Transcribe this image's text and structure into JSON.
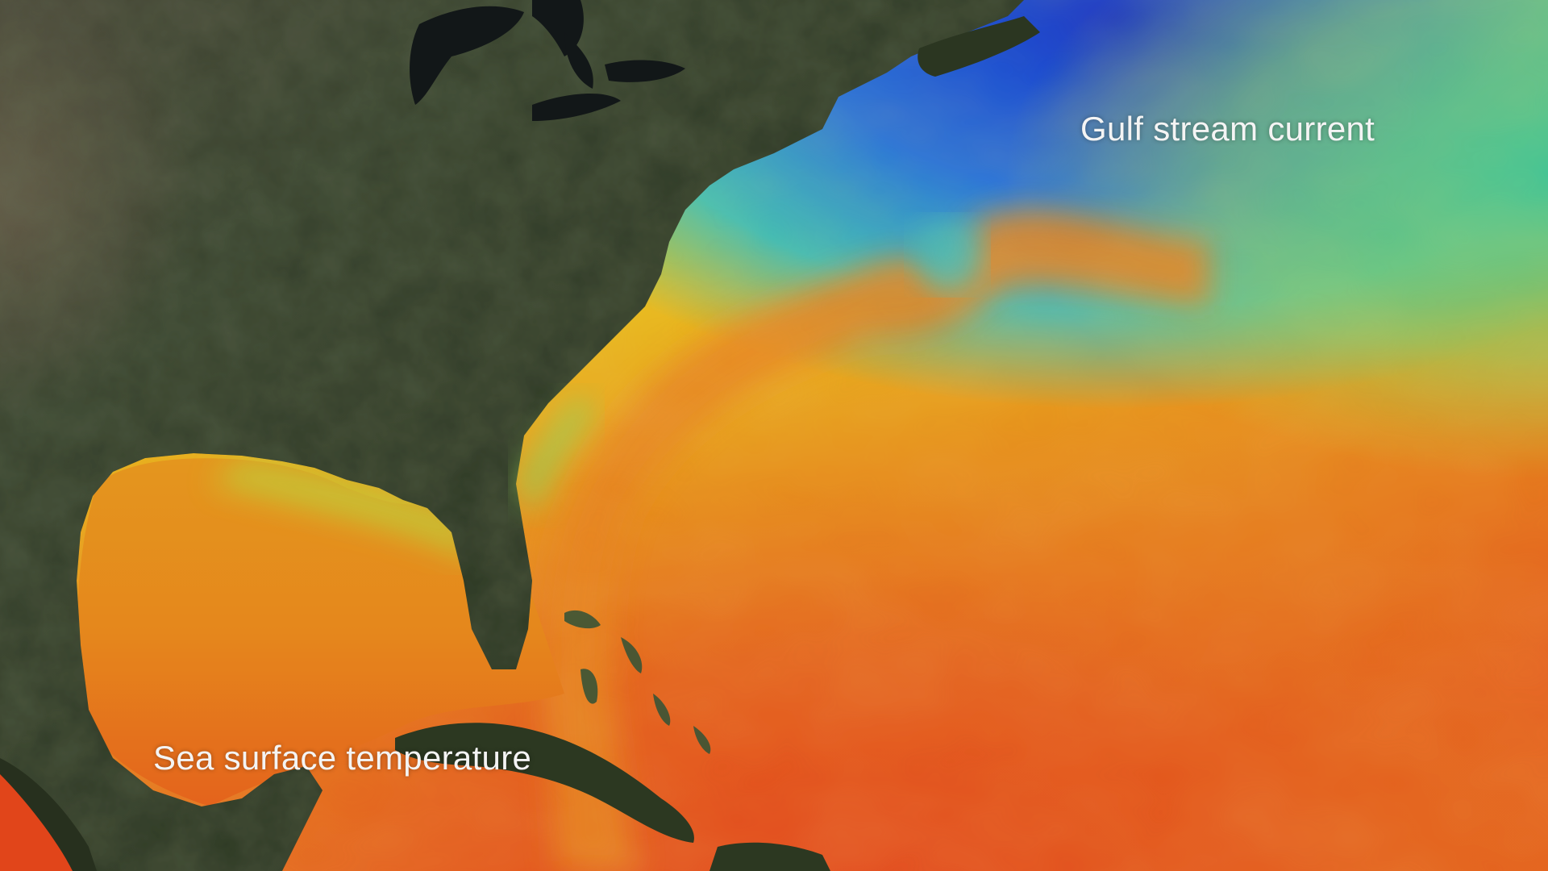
{
  "labels": {
    "gulf_stream": "Gulf stream current",
    "sea_surface": "Sea surface temperature"
  },
  "colors": {
    "land_dark": "#2a3320",
    "land_mid": "#3c4a2c",
    "land_arid": "#5a5444",
    "water_cold": "#1f5ee8",
    "water_cool": "#18c4f0",
    "water_mild": "#f0e61a",
    "water_warm": "#f59a1c",
    "water_hot": "#f2561e",
    "lakes": "#15191a",
    "label_text": "#f4f4f4"
  }
}
